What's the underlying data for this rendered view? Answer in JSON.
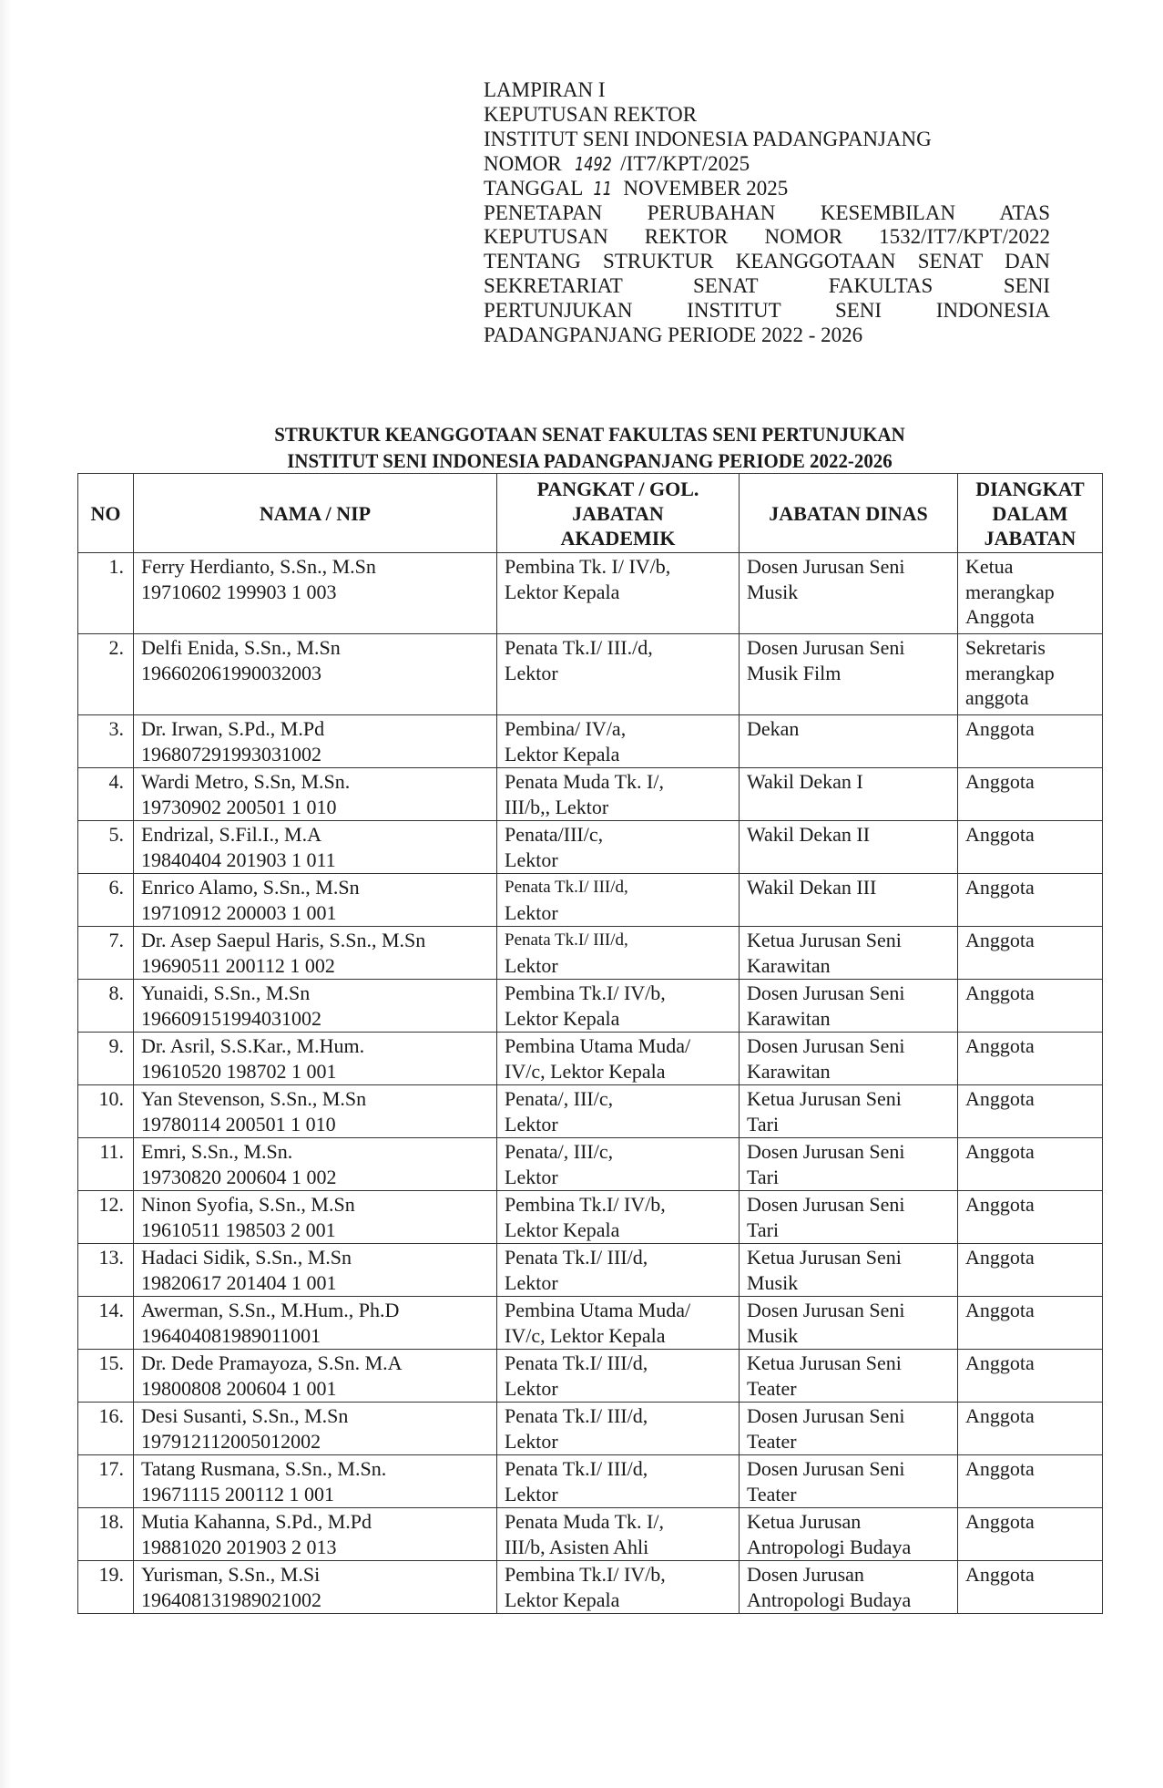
{
  "header": {
    "lines": [
      "LAMPIRAN I",
      "KEPUTUSAN REKTOR",
      "INSTITUT SENI INDONESIA PADANGPANJANG"
    ],
    "nomor_label": "NOMOR",
    "nomor_handwritten": "1492",
    "nomor_suffix": "/IT7/KPT/2025",
    "tanggal_label": "TANGGAL",
    "tanggal_handwritten": "11",
    "tanggal_suffix": "NOVEMBER 2025",
    "subject_lines": [
      "PENETAPAN PERUBAHAN KESEMBILAN ATAS",
      "KEPUTUSAN REKTOR NOMOR 1532/IT7/KPT/2022",
      "TENTANG STRUKTUR KEANGGOTAAN SENAT DAN",
      "SEKRETARIAT SENAT FAKULTAS SENI",
      "PERTUNJUKAN INSTITUT SENI INDONESIA",
      "PADANGPANJANG PERIODE 2022 - 2026"
    ]
  },
  "title": {
    "line1": "STRUKTUR KEANGGOTAAN SENAT FAKULTAS SENI PERTUNJUKAN",
    "line2": "INSTITUT SENI INDONESIA PADANGPANJANG PERIODE 2022-2026"
  },
  "table": {
    "columns": [
      [
        "NO"
      ],
      [
        "NAMA / NIP"
      ],
      [
        "PANGKAT / GOL.",
        "JABATAN",
        "AKADEMIK"
      ],
      [
        "JABATAN DINAS"
      ],
      [
        "DIANGKAT",
        "DALAM",
        "JABATAN"
      ]
    ],
    "rows": [
      {
        "no": "1.",
        "nama": "Ferry Herdianto, S.Sn., M.Sn",
        "nip": "19710602 199903 1 003",
        "pangkat": [
          "Pembina Tk. I/ IV/b,",
          "Lektor Kepala"
        ],
        "dinas": [
          "Dosen Jurusan Seni",
          "Musik"
        ],
        "diangkat": [
          "Ketua",
          "merangkap",
          "Anggota"
        ]
      },
      {
        "no": "2.",
        "nama": "Delfi Enida, S.Sn., M.Sn",
        "nip": "196602061990032003",
        "pangkat": [
          "Penata Tk.I/ III./d,",
          "Lektor"
        ],
        "dinas": [
          "Dosen Jurusan Seni",
          "Musik Film"
        ],
        "diangkat": [
          "Sekretaris",
          "merangkap",
          "anggota"
        ]
      },
      {
        "no": "3.",
        "nama": "Dr. Irwan, S.Pd., M.Pd",
        "nip": "196807291993031002",
        "pangkat": [
          "Pembina/ IV/a,",
          "Lektor Kepala"
        ],
        "dinas": [
          "Dekan"
        ],
        "diangkat": [
          "Anggota"
        ]
      },
      {
        "no": "4.",
        "nama": "Wardi Metro, S.Sn, M.Sn.",
        "nip": "19730902 200501 1 010",
        "pangkat": [
          "Penata Muda Tk. I/,",
          "III/b,, Lektor"
        ],
        "dinas": [
          "Wakil Dekan I"
        ],
        "diangkat": [
          "Anggota"
        ]
      },
      {
        "no": "5.",
        "nama": "Endrizal, S.Fil.I., M.A",
        "nip": "19840404 201903 1 011",
        "pangkat": [
          "Penata/III/c,",
          "Lektor"
        ],
        "dinas": [
          "Wakil Dekan II"
        ],
        "diangkat": [
          "Anggota"
        ]
      },
      {
        "no": "6.",
        "nama": "Enrico Alamo, S.Sn., M.Sn",
        "nip": "19710912 200003 1 001",
        "pangkat": [
          "Penata Tk.I/ III/d,",
          "Lektor"
        ],
        "small": true,
        "dinas": [
          "Wakil Dekan III"
        ],
        "diangkat": [
          "Anggota"
        ]
      },
      {
        "no": "7.",
        "nama": "Dr. Asep Saepul Haris, S.Sn., M.Sn",
        "nip": "19690511 200112 1 002",
        "pangkat": [
          "Penata Tk.I/ III/d,",
          "Lektor"
        ],
        "small": true,
        "dinas": [
          "Ketua Jurusan Seni",
          "Karawitan"
        ],
        "diangkat": [
          "Anggota"
        ]
      },
      {
        "no": "8.",
        "nama": "Yunaidi, S.Sn., M.Sn",
        "nip": "196609151994031002",
        "pangkat": [
          "Pembina Tk.I/ IV/b,",
          "Lektor Kepala"
        ],
        "dinas": [
          "Dosen Jurusan Seni",
          "Karawitan"
        ],
        "diangkat": [
          "Anggota"
        ]
      },
      {
        "no": "9.",
        "nama": "Dr. Asril, S.S.Kar., M.Hum.",
        "nip": "19610520 198702 1 001",
        "pangkat": [
          "Pembina Utama Muda/",
          "IV/c, Lektor Kepala"
        ],
        "dinas": [
          "Dosen Jurusan Seni",
          "Karawitan"
        ],
        "diangkat": [
          "Anggota"
        ]
      },
      {
        "no": "10.",
        "nama": "Yan Stevenson, S.Sn., M.Sn",
        "nip": "19780114 200501 1 010",
        "pangkat": [
          "Penata/, III/c,",
          "Lektor"
        ],
        "dinas": [
          "Ketua Jurusan Seni",
          "Tari"
        ],
        "diangkat": [
          "Anggota"
        ]
      },
      {
        "no": "11.",
        "nama": "Emri, S.Sn., M.Sn.",
        "nip": "19730820 200604 1 002",
        "pangkat": [
          "Penata/, III/c,",
          "Lektor"
        ],
        "dinas": [
          "Dosen Jurusan Seni",
          "Tari"
        ],
        "diangkat": [
          "Anggota"
        ]
      },
      {
        "no": "12.",
        "nama": "Ninon Syofia, S.Sn., M.Sn",
        "nip": "19610511 198503 2 001",
        "pangkat": [
          "Pembina Tk.I/ IV/b,",
          "Lektor Kepala"
        ],
        "dinas": [
          "Dosen Jurusan Seni",
          "Tari"
        ],
        "diangkat": [
          "Anggota"
        ]
      },
      {
        "no": "13.",
        "nama": "Hadaci Sidik, S.Sn., M.Sn",
        "nip": "19820617 201404 1 001",
        "pangkat": [
          "Penata Tk.I/ III/d,",
          "Lektor"
        ],
        "dinas": [
          "Ketua Jurusan Seni",
          "Musik"
        ],
        "diangkat": [
          "Anggota"
        ]
      },
      {
        "no": "14.",
        "nama": "Awerman, S.Sn., M.Hum., Ph.D",
        "nip": "196404081989011001",
        "pangkat": [
          "Pembina Utama Muda/",
          "IV/c, Lektor Kepala"
        ],
        "dinas": [
          "Dosen Jurusan Seni",
          "Musik"
        ],
        "diangkat": [
          "Anggota"
        ]
      },
      {
        "no": "15.",
        "nama": "Dr. Dede Pramayoza, S.Sn. M.A",
        "nip": "19800808 200604 1 001",
        "pangkat": [
          "Penata Tk.I/ III/d,",
          "Lektor"
        ],
        "dinas": [
          "Ketua Jurusan Seni",
          "Teater"
        ],
        "diangkat": [
          "Anggota"
        ]
      },
      {
        "no": "16.",
        "nama": "Desi Susanti, S.Sn., M.Sn",
        "nip": "197912112005012002",
        "pangkat": [
          "Penata Tk.I/ III/d,",
          "Lektor"
        ],
        "dinas": [
          "Dosen Jurusan Seni",
          "Teater"
        ],
        "diangkat": [
          "Anggota"
        ]
      },
      {
        "no": "17.",
        "nama": "Tatang Rusmana, S.Sn., M.Sn.",
        "nip": "19671115 200112 1 001",
        "pangkat": [
          "Penata Tk.I/ III/d,",
          "Lektor"
        ],
        "dinas": [
          "Dosen Jurusan Seni",
          "Teater"
        ],
        "diangkat": [
          "Anggota"
        ]
      },
      {
        "no": "18.",
        "nama": "Mutia Kahanna, S.Pd., M.Pd",
        "nip": "19881020 201903 2 013",
        "pangkat": [
          "Penata Muda Tk. I/,",
          "III/b, Asisten Ahli"
        ],
        "dinas": [
          "Ketua Jurusan",
          "Antropologi Budaya"
        ],
        "diangkat": [
          "Anggota"
        ]
      },
      {
        "no": "19.",
        "nama": "Yurisman, S.Sn., M.Si",
        "nip": "196408131989021002",
        "pangkat": [
          "Pembina Tk.I/ IV/b,",
          "Lektor Kepala"
        ],
        "dinas": [
          "Dosen Jurusan",
          "Antropologi Budaya"
        ],
        "diangkat": [
          "Anggota"
        ]
      }
    ]
  }
}
